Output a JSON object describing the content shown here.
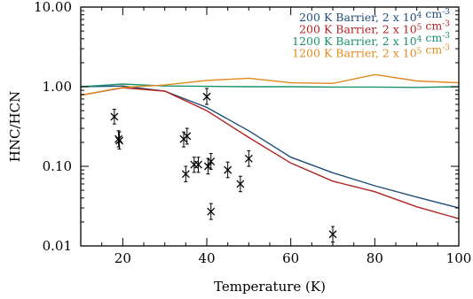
{
  "chart_data": {
    "type": "line",
    "xlabel": "Temperature (K)",
    "ylabel": "HNC/HCN",
    "xlim": [
      10,
      100
    ],
    "ylim": [
      0.01,
      10
    ],
    "yscale": "log",
    "legend_position": "top-right",
    "x_ticks": [
      {
        "value": 20,
        "label": "20"
      },
      {
        "value": 40,
        "label": "40"
      },
      {
        "value": 60,
        "label": "60"
      },
      {
        "value": 80,
        "label": "80"
      },
      {
        "value": 100,
        "label": "100"
      }
    ],
    "y_ticks": [
      {
        "value": 0.01,
        "label": "0.01"
      },
      {
        "value": 0.1,
        "label": "0.10"
      },
      {
        "value": 1,
        "label": "1.00"
      },
      {
        "value": 10,
        "label": "10.00"
      }
    ],
    "series": [
      {
        "name": "200 K Barrier, 2 x 10",
        "name_sup": "4",
        "name_unit": " cm",
        "name_unit_sup": "-3",
        "color": "#1f4e79",
        "x": [
          10,
          20,
          30,
          40,
          50,
          60,
          70,
          80,
          90,
          100
        ],
        "y": [
          1.0,
          1.02,
          0.88,
          0.55,
          0.28,
          0.13,
          0.083,
          0.057,
          0.041,
          0.03
        ]
      },
      {
        "name": "200 K Barrier, 2 x 10",
        "name_sup": "5",
        "name_unit": " cm",
        "name_unit_sup": "-3",
        "color": "#b22222",
        "x": [
          10,
          20,
          30,
          40,
          50,
          60,
          70,
          80,
          90,
          100
        ],
        "y": [
          0.78,
          0.97,
          0.88,
          0.5,
          0.23,
          0.11,
          0.065,
          0.048,
          0.031,
          0.022
        ]
      },
      {
        "name": "1200 K Barrier, 2 x 10",
        "name_sup": "4",
        "name_unit": " cm",
        "name_unit_sup": "-3",
        "color": "#1a9070",
        "x": [
          10,
          20,
          30,
          40,
          50,
          60,
          70,
          80,
          90,
          100
        ],
        "y": [
          1.0,
          1.08,
          1.02,
          1.01,
          1.0,
          1.0,
          0.99,
          0.99,
          0.98,
          1.0
        ]
      },
      {
        "name": "1200 K Barrier, 2 x 10",
        "name_sup": "5",
        "name_unit": " cm",
        "name_unit_sup": "-3",
        "color": "#e08a1e",
        "x": [
          10,
          20,
          30,
          40,
          50,
          60,
          70,
          80,
          90,
          100
        ],
        "y": [
          0.78,
          0.98,
          1.05,
          1.2,
          1.28,
          1.12,
          1.1,
          1.42,
          1.18,
          1.12
        ]
      }
    ],
    "observations": {
      "marker": "x",
      "color": "#000000",
      "points": [
        {
          "x": 18,
          "y": 0.42,
          "lo": 0.34,
          "hi": 0.52
        },
        {
          "x": 19,
          "y": 0.22,
          "lo": 0.175,
          "hi": 0.28
        },
        {
          "x": 19.2,
          "y": 0.21,
          "lo": 0.165,
          "hi": 0.27
        },
        {
          "x": 34.5,
          "y": 0.22,
          "lo": 0.175,
          "hi": 0.27
        },
        {
          "x": 35.3,
          "y": 0.24,
          "lo": 0.19,
          "hi": 0.3
        },
        {
          "x": 35,
          "y": 0.08,
          "lo": 0.064,
          "hi": 0.1
        },
        {
          "x": 37,
          "y": 0.105,
          "lo": 0.084,
          "hi": 0.13
        },
        {
          "x": 38,
          "y": 0.105,
          "lo": 0.084,
          "hi": 0.13
        },
        {
          "x": 40,
          "y": 0.75,
          "lo": 0.6,
          "hi": 0.95
        },
        {
          "x": 40.3,
          "y": 0.1,
          "lo": 0.08,
          "hi": 0.125
        },
        {
          "x": 41,
          "y": 0.115,
          "lo": 0.092,
          "hi": 0.145
        },
        {
          "x": 41,
          "y": 0.027,
          "lo": 0.0215,
          "hi": 0.034
        },
        {
          "x": 45,
          "y": 0.09,
          "lo": 0.072,
          "hi": 0.113
        },
        {
          "x": 48,
          "y": 0.06,
          "lo": 0.048,
          "hi": 0.075
        },
        {
          "x": 50,
          "y": 0.125,
          "lo": 0.1,
          "hi": 0.157
        },
        {
          "x": 70,
          "y": 0.014,
          "lo": 0.0112,
          "hi": 0.0175
        }
      ]
    }
  }
}
